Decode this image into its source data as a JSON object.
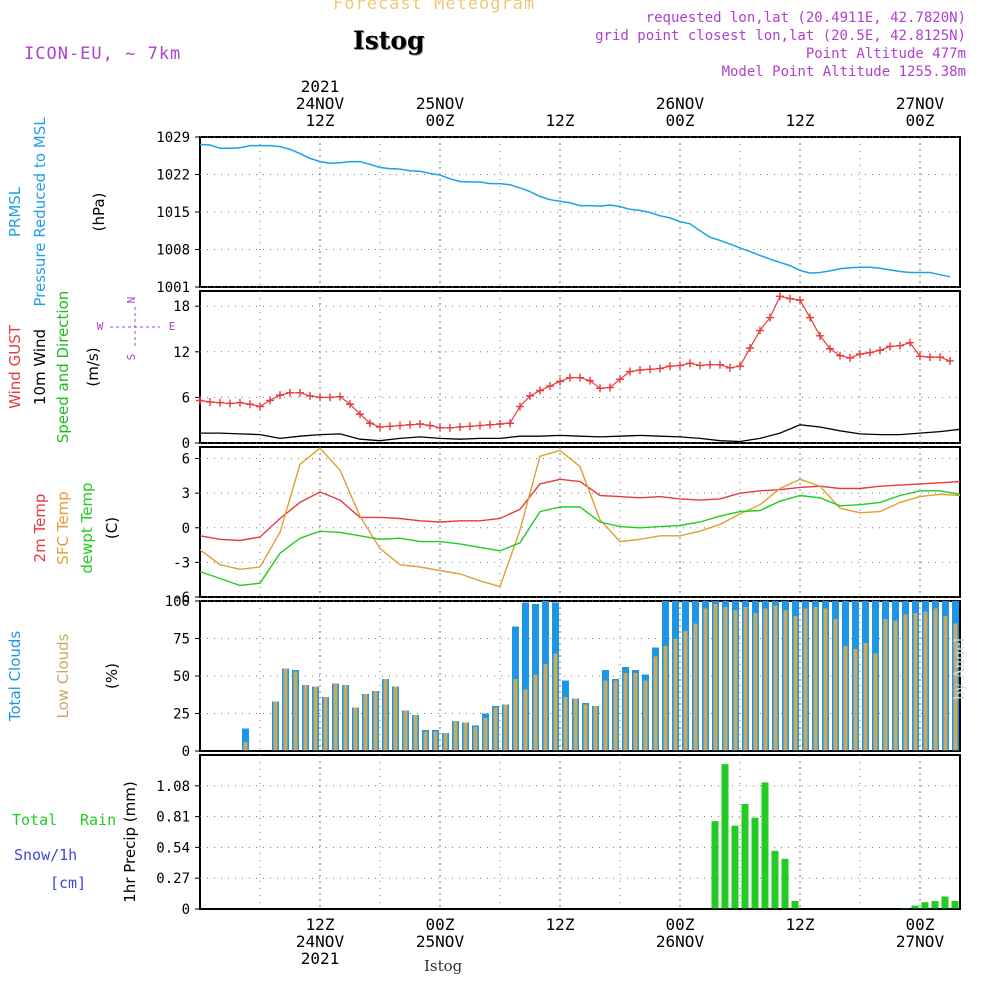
{
  "header": {
    "product": "Forecast Meteogram",
    "model": "ICON-EU, ~ 7km",
    "station": "Istog",
    "requested": "requested lon,lat (20.4911E, 42.7820N)",
    "grid_point": "grid point closest lon,lat (20.5E, 42.8125N)",
    "point_altitude": "Point Altitude 477m",
    "model_altitude": "Model Point Altitude 1255.38m",
    "footer_station": "Istog",
    "credit": "by Angel"
  },
  "time_axis": {
    "top_labels": [
      {
        "t": 12,
        "lines": [
          "2021",
          "24NOV",
          "12Z"
        ]
      },
      {
        "t": 24,
        "lines": [
          "25NOV",
          "00Z"
        ]
      },
      {
        "t": 36,
        "lines": [
          "12Z"
        ]
      },
      {
        "t": 48,
        "lines": [
          "26NOV",
          "00Z"
        ]
      },
      {
        "t": 60,
        "lines": [
          "12Z"
        ]
      },
      {
        "t": 72,
        "lines": [
          "27NOV",
          "00Z"
        ]
      }
    ],
    "bottom_labels": [
      {
        "t": 12,
        "lines": [
          "12Z",
          "24NOV",
          "2021"
        ]
      },
      {
        "t": 24,
        "lines": [
          "00Z",
          "25NOV"
        ]
      },
      {
        "t": 36,
        "lines": [
          "12Z"
        ]
      },
      {
        "t": 48,
        "lines": [
          "00Z",
          "26NOV"
        ]
      },
      {
        "t": 60,
        "lines": [
          "12Z"
        ]
      },
      {
        "t": 72,
        "lines": [
          "00Z",
          "27NOV"
        ]
      }
    ]
  },
  "colors": {
    "pressure": "#1ea0e6",
    "gust": "#e63c3c",
    "wind10m": "#000000",
    "wind_dir_label": "#22bb22",
    "t2m": "#e63c3c",
    "tsfc": "#e0a030",
    "dewpt": "#22cc22",
    "total_clouds": "#1e96e6",
    "low_clouds": "#c8aa64",
    "rain": "#22cc22",
    "snow": "#4444dd",
    "compass": "#b040d0",
    "header_product": "#f0c878",
    "header_meta": "#b040d0"
  },
  "chart_data": [
    {
      "type": "line",
      "panel": "pressure",
      "ylabel_lines": [
        "PRMSL",
        "Pressure Reduced to MSL"
      ],
      "unit": "(hPa)",
      "ylim": [
        1001,
        1029
      ],
      "yticks": [
        "1029",
        "1022",
        "1015",
        "1008",
        "1001"
      ],
      "series": [
        {
          "name": "PRMSL",
          "color": "#1ea0e6",
          "x": [
            0,
            1,
            2,
            3,
            4,
            5,
            6,
            7,
            8,
            9,
            10,
            11,
            12,
            13,
            14,
            15,
            16,
            17,
            18,
            19,
            20,
            21,
            22,
            23,
            24,
            25,
            26,
            27,
            28,
            29,
            30,
            31,
            32,
            33,
            34,
            35,
            36,
            37,
            38,
            39,
            40,
            41,
            42,
            43,
            44,
            45,
            46,
            47,
            48,
            49,
            50,
            51,
            52,
            53,
            54,
            55,
            56,
            57,
            58,
            59,
            60,
            61,
            62,
            63,
            64,
            65,
            66,
            67,
            68,
            69,
            70,
            71,
            72,
            73,
            74,
            75
          ],
          "values": [
            1027.6,
            1027.5,
            1026.9,
            1026.9,
            1027.0,
            1027.4,
            1027.4,
            1027.4,
            1027.2,
            1026.7,
            1025.9,
            1025.0,
            1024.4,
            1024.1,
            1024.2,
            1024.4,
            1024.4,
            1023.9,
            1023.3,
            1023.1,
            1023.0,
            1022.7,
            1022.6,
            1022.2,
            1021.9,
            1021.2,
            1020.7,
            1020.6,
            1020.6,
            1020.3,
            1020.3,
            1020.1,
            1019.5,
            1018.8,
            1017.9,
            1017.3,
            1017.0,
            1016.7,
            1016.2,
            1016.2,
            1016.1,
            1016.3,
            1016.0,
            1015.5,
            1015.3,
            1014.9,
            1014.3,
            1013.9,
            1013.2,
            1012.8,
            1011.5,
            1010.3,
            1009.7,
            1009.0,
            1008.3,
            1007.6,
            1006.9,
            1006.2,
            1005.6,
            1005.0,
            1004.1,
            1003.6,
            1003.7,
            1004.0,
            1004.4,
            1004.6,
            1004.7,
            1004.7,
            1004.5,
            1004.2,
            1003.9,
            1003.7,
            1003.7,
            1003.7,
            1003.3,
            1002.9
          ]
        }
      ]
    },
    {
      "type": "line",
      "panel": "wind",
      "ylabel_lines": [
        "Wind GUST",
        "10m Wind",
        "Speed and Direction"
      ],
      "unit": "(m/s)",
      "ylim": [
        0,
        20
      ],
      "yticks": [
        "18",
        "12",
        "6",
        "0"
      ],
      "compass": [
        "N",
        "W",
        "E",
        "S"
      ],
      "series": [
        {
          "name": "Wind GUST",
          "color": "#e63c3c",
          "marker": "plus",
          "x": [
            0,
            1,
            2,
            3,
            4,
            5,
            6,
            7,
            8,
            9,
            10,
            11,
            12,
            13,
            14,
            15,
            16,
            17,
            18,
            19,
            20,
            21,
            22,
            23,
            24,
            25,
            26,
            27,
            28,
            29,
            30,
            31,
            32,
            33,
            34,
            35,
            36,
            37,
            38,
            39,
            40,
            41,
            42,
            43,
            44,
            45,
            46,
            47,
            48,
            49,
            50,
            51,
            52,
            53,
            54,
            55,
            56,
            57,
            58,
            59,
            60,
            61,
            62,
            63,
            64,
            65,
            66,
            67,
            68,
            69,
            70,
            71,
            72,
            73,
            74,
            75
          ],
          "values": [
            5.6,
            5.4,
            5.3,
            5.2,
            5.3,
            5.1,
            4.8,
            5.6,
            6.3,
            6.6,
            6.6,
            6.2,
            6.0,
            6.0,
            6.1,
            5.1,
            3.8,
            2.6,
            2.1,
            2.2,
            2.3,
            2.4,
            2.5,
            2.3,
            2.0,
            2.0,
            2.1,
            2.2,
            2.3,
            2.4,
            2.5,
            2.6,
            4.8,
            6.2,
            6.9,
            7.5,
            8.1,
            8.6,
            8.6,
            8.2,
            7.2,
            7.3,
            8.4,
            9.4,
            9.6,
            9.7,
            9.8,
            10.1,
            10.2,
            10.5,
            10.2,
            10.3,
            10.3,
            9.9,
            10.1,
            12.5,
            14.8,
            16.5,
            19.3,
            19.0,
            18.8,
            16.5,
            14.1,
            12.4,
            11.5,
            11.2,
            11.7,
            11.9,
            12.2,
            12.7,
            12.8,
            13.2,
            11.4,
            11.3,
            11.3,
            10.8
          ]
        },
        {
          "name": "10m Wind",
          "color": "#000000",
          "x": [
            0,
            2,
            4,
            6,
            8,
            10,
            12,
            14,
            16,
            18,
            20,
            22,
            24,
            26,
            28,
            30,
            32,
            34,
            36,
            38,
            40,
            42,
            44,
            46,
            48,
            50,
            52,
            54,
            56,
            58,
            60,
            62,
            64,
            66,
            68,
            70,
            72,
            74,
            76
          ],
          "values": [
            1.3,
            1.3,
            1.2,
            1.1,
            0.6,
            0.9,
            1.1,
            1.2,
            0.5,
            0.3,
            0.6,
            0.8,
            0.6,
            0.5,
            0.6,
            0.6,
            0.9,
            0.9,
            1.0,
            0.9,
            0.8,
            0.9,
            1.0,
            0.9,
            0.8,
            0.6,
            0.3,
            0.2,
            0.6,
            1.3,
            2.4,
            2.1,
            1.6,
            1.2,
            1.1,
            1.1,
            1.3,
            1.5,
            1.8
          ]
        }
      ]
    },
    {
      "type": "line",
      "panel": "temperature",
      "ylabel_lines": [
        "2m Temp",
        "SFC Temp",
        "dewpt Temp"
      ],
      "unit": "(C)",
      "ylim": [
        -6,
        7
      ],
      "yticks": [
        "6",
        "3",
        "0",
        "-3",
        "-6"
      ],
      "series": [
        {
          "name": "2m Temp",
          "color": "#e63c3c",
          "x": [
            0,
            2,
            4,
            6,
            8,
            10,
            12,
            14,
            16,
            18,
            20,
            22,
            24,
            26,
            28,
            30,
            32,
            34,
            36,
            38,
            40,
            42,
            44,
            46,
            48,
            50,
            52,
            54,
            56,
            58,
            60,
            62,
            64,
            66,
            68,
            70,
            72,
            74,
            76
          ],
          "values": [
            -0.7,
            -1.0,
            -1.1,
            -0.8,
            0.8,
            2.2,
            3.1,
            2.4,
            0.9,
            0.9,
            0.8,
            0.6,
            0.5,
            0.6,
            0.6,
            0.8,
            1.6,
            3.8,
            4.2,
            4.0,
            2.8,
            2.7,
            2.6,
            2.7,
            2.5,
            2.4,
            2.5,
            3.0,
            3.2,
            3.3,
            3.5,
            3.6,
            3.4,
            3.4,
            3.6,
            3.7,
            3.8,
            3.9,
            4.0
          ]
        },
        {
          "name": "SFC Temp",
          "color": "#e0a030",
          "x": [
            0,
            2,
            4,
            6,
            8,
            10,
            12,
            14,
            16,
            18,
            20,
            22,
            24,
            26,
            28,
            30,
            32,
            34,
            36,
            38,
            40,
            42,
            44,
            46,
            48,
            50,
            52,
            54,
            56,
            58,
            60,
            62,
            64,
            66,
            68,
            70,
            72,
            74,
            76
          ],
          "values": [
            -1.9,
            -3.2,
            -3.6,
            -3.4,
            -0.4,
            5.5,
            6.9,
            5.0,
            1.0,
            -1.8,
            -3.2,
            -3.4,
            -3.7,
            -4.0,
            -4.6,
            -5.1,
            -0.2,
            6.2,
            6.7,
            5.3,
            0.7,
            -1.2,
            -1.0,
            -0.7,
            -0.7,
            -0.3,
            0.3,
            1.2,
            2.0,
            3.4,
            4.2,
            3.6,
            1.7,
            1.3,
            1.4,
            2.2,
            2.7,
            2.9,
            2.8
          ]
        },
        {
          "name": "dewpt Temp",
          "color": "#22cc22",
          "x": [
            0,
            2,
            4,
            6,
            8,
            10,
            12,
            14,
            16,
            18,
            20,
            22,
            24,
            26,
            28,
            30,
            32,
            34,
            36,
            38,
            40,
            42,
            44,
            46,
            48,
            50,
            52,
            54,
            56,
            58,
            60,
            62,
            64,
            66,
            68,
            70,
            72,
            74,
            76
          ],
          "values": [
            -3.8,
            -4.4,
            -5.0,
            -4.8,
            -2.2,
            -0.9,
            -0.3,
            -0.4,
            -0.7,
            -1.0,
            -0.9,
            -1.2,
            -1.2,
            -1.4,
            -1.7,
            -2.0,
            -1.3,
            1.4,
            1.8,
            1.8,
            0.5,
            0.1,
            0.0,
            0.1,
            0.2,
            0.5,
            1.0,
            1.4,
            1.5,
            2.3,
            2.8,
            2.6,
            1.9,
            2.0,
            2.2,
            2.8,
            3.2,
            3.2,
            2.9
          ]
        }
      ]
    },
    {
      "type": "bar",
      "panel": "clouds",
      "ylabel_lines": [
        "Total Clouds",
        "Low Clouds"
      ],
      "unit": "(%)",
      "ylim": [
        0,
        100
      ],
      "yticks": [
        "100",
        "75",
        "50",
        "25",
        "0"
      ],
      "x": [
        0,
        1,
        2,
        3,
        4,
        5,
        6,
        7,
        8,
        9,
        10,
        11,
        12,
        13,
        14,
        15,
        16,
        17,
        18,
        19,
        20,
        21,
        22,
        23,
        24,
        25,
        26,
        27,
        28,
        29,
        30,
        31,
        32,
        33,
        34,
        35,
        36,
        37,
        38,
        39,
        40,
        41,
        42,
        43,
        44,
        45,
        46,
        47,
        48,
        49,
        50,
        51,
        52,
        53,
        54,
        55,
        56,
        57,
        58,
        59,
        60,
        61,
        62,
        63,
        64,
        65,
        66,
        67,
        68,
        69,
        70,
        71,
        72,
        73,
        74,
        75
      ],
      "series": [
        {
          "name": "Total Clouds",
          "color": "#1e96e6",
          "values": [
            0,
            0,
            0,
            0,
            15,
            0,
            0,
            33,
            55,
            54,
            44,
            43,
            36,
            45,
            44,
            29,
            38,
            40,
            48,
            43,
            27,
            24,
            14,
            14,
            12,
            20,
            19,
            17,
            25,
            30,
            31,
            83,
            99,
            98,
            100,
            99,
            47,
            35,
            32,
            30,
            54,
            48,
            56,
            54,
            51,
            69,
            100,
            100,
            100,
            100,
            100,
            100,
            100,
            100,
            100,
            100,
            100,
            100,
            100,
            100,
            100,
            100,
            100,
            100,
            100,
            100,
            100,
            100,
            100,
            100,
            100,
            100,
            100,
            100,
            100,
            100
          ]
        },
        {
          "name": "Low Clouds",
          "color": "#c8aa64",
          "values": [
            0,
            0,
            0,
            0,
            6,
            0,
            0,
            33,
            55,
            53,
            44,
            43,
            36,
            45,
            44,
            29,
            38,
            40,
            48,
            43,
            27,
            24,
            13,
            13,
            12,
            20,
            19,
            16,
            22,
            29,
            31,
            48,
            41,
            51,
            58,
            65,
            36,
            35,
            31,
            30,
            47,
            47,
            52,
            52,
            47,
            63,
            70,
            75,
            80,
            85,
            95,
            98,
            96,
            94,
            96,
            92,
            95,
            97,
            94,
            90,
            95,
            96,
            95,
            88,
            70,
            68,
            72,
            65,
            88,
            87,
            91,
            92,
            93,
            95,
            90,
            85
          ]
        }
      ]
    },
    {
      "type": "bar",
      "panel": "precip",
      "legend": [
        "Total",
        "Rain",
        "Snow/1h",
        "[cm]"
      ],
      "ylabel": "1hr Precip (mm)",
      "ylim": [
        0,
        1.35
      ],
      "yticks": [
        "1.08",
        "0.81",
        "0.54",
        "0.27",
        "0"
      ],
      "series": [
        {
          "name": "Total Rain",
          "color": "#22cc22",
          "x": [
            51,
            52,
            53,
            54,
            55,
            56,
            57,
            58,
            59,
            60,
            70,
            71,
            72,
            73,
            74,
            75
          ],
          "values": [
            0.77,
            1.27,
            0.73,
            0.92,
            0.8,
            1.11,
            0.51,
            0.44,
            0.07,
            0.0,
            0.01,
            0.03,
            0.06,
            0.07,
            0.11,
            0.07
          ]
        }
      ]
    }
  ]
}
